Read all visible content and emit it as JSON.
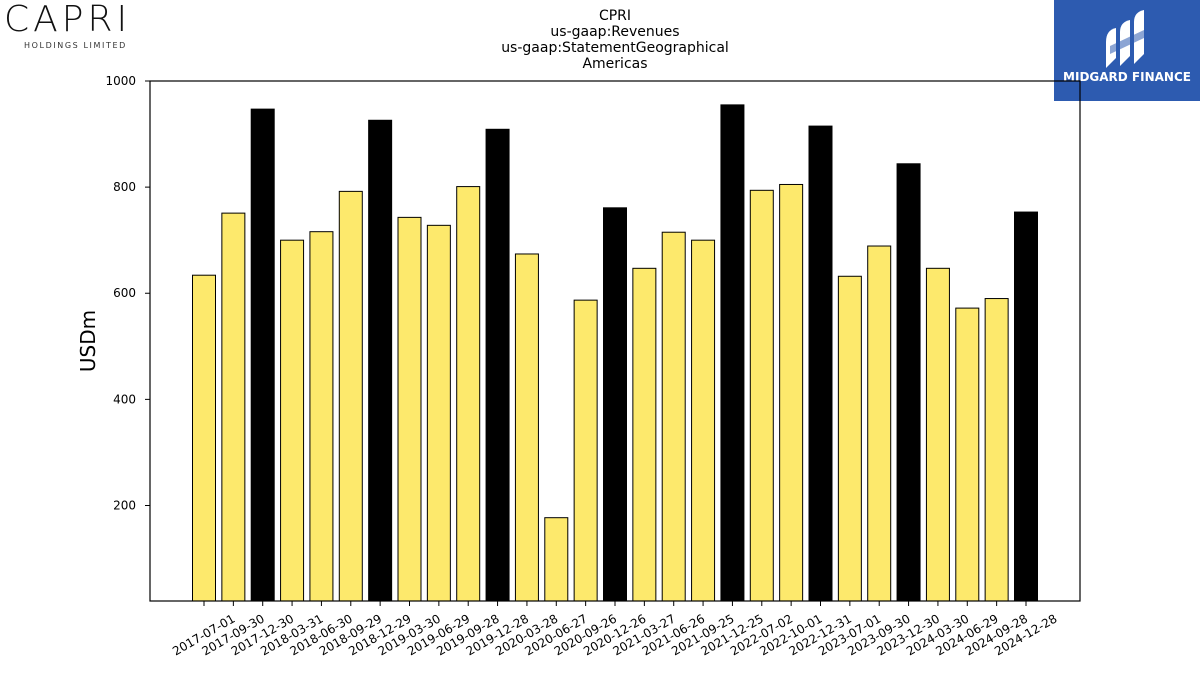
{
  "logos": {
    "left": {
      "word": "CAPRI",
      "subtitle": "HOLDINGS LIMITED"
    },
    "right": {
      "text": "MIDGARD FINANCE",
      "bg_color": "#2d5bb0"
    }
  },
  "chart_data": {
    "type": "bar",
    "title_lines": [
      "CPRI",
      "us-gaap:Revenues",
      "us-gaap:StatementGeographical",
      "Americas"
    ],
    "ylabel": "USDm",
    "xlabel": "",
    "ylim": [
      20,
      1000
    ],
    "yticks": [
      200,
      400,
      600,
      800,
      1000
    ],
    "grid": false,
    "colors": {
      "quarter": "#fde96c",
      "fiscal_year_end": "#000000"
    },
    "categories": [
      "2017-07-01",
      "2017-09-30",
      "2017-12-30",
      "2018-03-31",
      "2018-06-30",
      "2018-09-29",
      "2018-12-29",
      "2019-03-30",
      "2019-06-29",
      "2019-09-28",
      "2019-12-28",
      "2020-03-28",
      "2020-06-27",
      "2020-09-26",
      "2020-12-26",
      "2021-03-27",
      "2021-06-26",
      "2021-09-25",
      "2021-12-25",
      "2022-07-02",
      "2022-10-01",
      "2022-12-31",
      "2023-07-01",
      "2023-09-30",
      "2023-12-30",
      "2024-03-30",
      "2024-06-29",
      "2024-09-28",
      "2024-12-28"
    ],
    "values": [
      634,
      751,
      947,
      700,
      716,
      792,
      926,
      743,
      728,
      801,
      909,
      674,
      177,
      587,
      761,
      647,
      715,
      700,
      955,
      794,
      805,
      915,
      632,
      689,
      844,
      647,
      572,
      590,
      753
    ],
    "highlight": [
      false,
      false,
      true,
      false,
      false,
      false,
      true,
      false,
      false,
      false,
      true,
      false,
      false,
      false,
      true,
      false,
      false,
      false,
      true,
      false,
      false,
      true,
      false,
      false,
      true,
      false,
      false,
      false,
      true
    ]
  }
}
